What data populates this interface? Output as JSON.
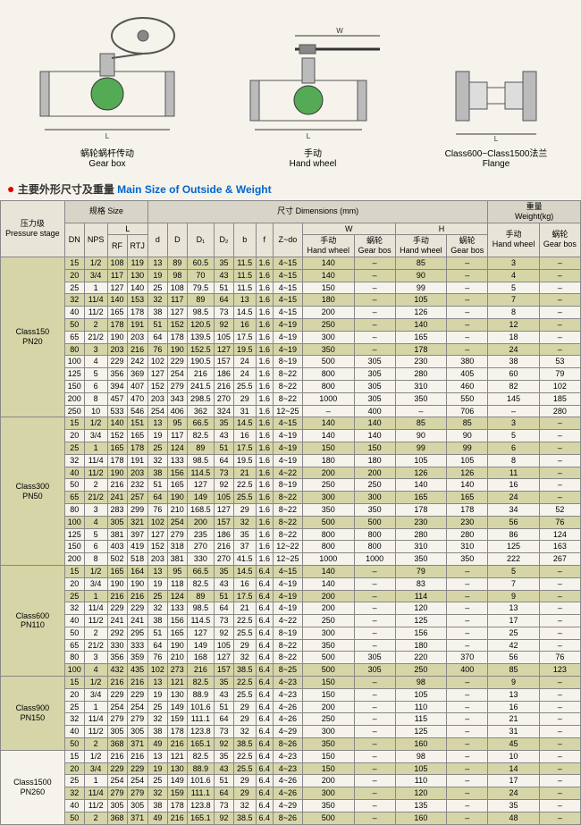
{
  "diagrams": [
    {
      "label_cn": "蜗轮蜗杆传动",
      "label_en": "Gear box"
    },
    {
      "label_cn": "手动",
      "label_en": "Hand wheel"
    },
    {
      "label_cn": "Class600~Class1500法兰",
      "label_en": "Flange"
    }
  ],
  "title": {
    "dot": "●",
    "cn": "主要外形尺寸及重量",
    "en": "Main Size of Outside & Weight"
  },
  "headers": {
    "pressure_cn": "压力级",
    "pressure_en": "Pressure stage",
    "size_cn": "规格 Size",
    "dims_cn": "尺寸 Dimensions (mm)",
    "weight_cn": "重量",
    "weight_en": "Weight(kg)",
    "DN": "DN",
    "NPS": "NPS",
    "L": "L",
    "RF": "RF",
    "RTJ": "RTJ",
    "d": "d",
    "D": "D",
    "D1": "D₁",
    "D2": "D₂",
    "b": "b",
    "f": "f",
    "Zdo": "Z~do",
    "W": "W",
    "H": "H",
    "hw_cn": "手动",
    "hw_en": "Hand wheel",
    "gb_cn": "蜗轮",
    "gb_en": "Gear bos"
  },
  "groups": [
    {
      "name": "Class150 PN20",
      "rows": [
        [
          "15",
          "1/2",
          "108",
          "119",
          "13",
          "89",
          "60.5",
          "35",
          "11.5",
          "1.6",
          "4~15",
          "140",
          "",
          "85",
          "",
          "3",
          "",
          1
        ],
        [
          "20",
          "3/4",
          "117",
          "130",
          "19",
          "98",
          "70",
          "43",
          "11.5",
          "1.6",
          "4~15",
          "140",
          "",
          "90",
          "",
          "4",
          "",
          1
        ],
        [
          "25",
          "1",
          "127",
          "140",
          "25",
          "108",
          "79.5",
          "51",
          "11.5",
          "1.6",
          "4~15",
          "150",
          "",
          "99",
          "",
          "5",
          "",
          0
        ],
        [
          "32",
          "11/4",
          "140",
          "153",
          "32",
          "117",
          "89",
          "64",
          "13",
          "1.6",
          "4~15",
          "180",
          "",
          "105",
          "",
          "7",
          "",
          1
        ],
        [
          "40",
          "11/2",
          "165",
          "178",
          "38",
          "127",
          "98.5",
          "73",
          "14.5",
          "1.6",
          "4~15",
          "200",
          "",
          "126",
          "",
          "8",
          "",
          0
        ],
        [
          "50",
          "2",
          "178",
          "191",
          "51",
          "152",
          "120.5",
          "92",
          "16",
          "1.6",
          "4~19",
          "250",
          "",
          "140",
          "",
          "12",
          "",
          1
        ],
        [
          "65",
          "21/2",
          "190",
          "203",
          "64",
          "178",
          "139.5",
          "105",
          "17.5",
          "1.6",
          "4~19",
          "300",
          "",
          "165",
          "",
          "18",
          "",
          0
        ],
        [
          "80",
          "3",
          "203",
          "216",
          "76",
          "190",
          "152.5",
          "127",
          "19.5",
          "1.6",
          "4~19",
          "350",
          "",
          "178",
          "",
          "24",
          "",
          1
        ],
        [
          "100",
          "4",
          "229",
          "242",
          "102",
          "229",
          "190.5",
          "157",
          "24",
          "1.6",
          "8~19",
          "500",
          "305",
          "230",
          "380",
          "38",
          "53",
          0
        ],
        [
          "125",
          "5",
          "356",
          "369",
          "127",
          "254",
          "216",
          "186",
          "24",
          "1.6",
          "8~22",
          "800",
          "305",
          "280",
          "405",
          "60",
          "79",
          0
        ],
        [
          "150",
          "6",
          "394",
          "407",
          "152",
          "279",
          "241.5",
          "216",
          "25.5",
          "1.6",
          "8~22",
          "800",
          "305",
          "310",
          "460",
          "82",
          "102",
          0
        ],
        [
          "200",
          "8",
          "457",
          "470",
          "203",
          "343",
          "298.5",
          "270",
          "29",
          "1.6",
          "8~22",
          "1000",
          "305",
          "350",
          "550",
          "145",
          "185",
          0
        ],
        [
          "250",
          "10",
          "533",
          "546",
          "254",
          "406",
          "362",
          "324",
          "31",
          "1.6",
          "12~25",
          "",
          "400",
          "",
          "706",
          "",
          "280",
          0
        ]
      ]
    },
    {
      "name": "Class300 PN50",
      "rows": [
        [
          "15",
          "1/2",
          "140",
          "151",
          "13",
          "95",
          "66.5",
          "35",
          "14.5",
          "1.6",
          "4~15",
          "140",
          "140",
          "85",
          "85",
          "3",
          "",
          1
        ],
        [
          "20",
          "3/4",
          "152",
          "165",
          "19",
          "117",
          "82.5",
          "43",
          "16",
          "1.6",
          "4~19",
          "140",
          "140",
          "90",
          "90",
          "5",
          "",
          0
        ],
        [
          "25",
          "1",
          "165",
          "178",
          "25",
          "124",
          "89",
          "51",
          "17.5",
          "1.6",
          "4~19",
          "150",
          "150",
          "99",
          "99",
          "6",
          "",
          1
        ],
        [
          "32",
          "11/4",
          "178",
          "191",
          "32",
          "133",
          "98.5",
          "64",
          "19.5",
          "1.6",
          "4~19",
          "180",
          "180",
          "105",
          "105",
          "8",
          "",
          0
        ],
        [
          "40",
          "11/2",
          "190",
          "203",
          "38",
          "156",
          "114.5",
          "73",
          "21",
          "1.6",
          "4~22",
          "200",
          "200",
          "126",
          "126",
          "11",
          "",
          1
        ],
        [
          "50",
          "2",
          "216",
          "232",
          "51",
          "165",
          "127",
          "92",
          "22.5",
          "1.6",
          "8~19",
          "250",
          "250",
          "140",
          "140",
          "16",
          "",
          0
        ],
        [
          "65",
          "21/2",
          "241",
          "257",
          "64",
          "190",
          "149",
          "105",
          "25.5",
          "1.6",
          "8~22",
          "300",
          "300",
          "165",
          "165",
          "24",
          "",
          1
        ],
        [
          "80",
          "3",
          "283",
          "299",
          "76",
          "210",
          "168.5",
          "127",
          "29",
          "1.6",
          "8~22",
          "350",
          "350",
          "178",
          "178",
          "34",
          "52",
          0
        ],
        [
          "100",
          "4",
          "305",
          "321",
          "102",
          "254",
          "200",
          "157",
          "32",
          "1.6",
          "8~22",
          "500",
          "500",
          "230",
          "230",
          "56",
          "76",
          1
        ],
        [
          "125",
          "5",
          "381",
          "397",
          "127",
          "279",
          "235",
          "186",
          "35",
          "1.6",
          "8~22",
          "800",
          "800",
          "280",
          "280",
          "86",
          "124",
          0
        ],
        [
          "150",
          "6",
          "403",
          "419",
          "152",
          "318",
          "270",
          "216",
          "37",
          "1.6",
          "12~22",
          "800",
          "800",
          "310",
          "310",
          "125",
          "163",
          0
        ],
        [
          "200",
          "8",
          "502",
          "518",
          "203",
          "381",
          "330",
          "270",
          "41.5",
          "1.6",
          "12~25",
          "1000",
          "1000",
          "350",
          "350",
          "222",
          "267",
          0
        ]
      ]
    },
    {
      "name": "Class600 PN110",
      "rows": [
        [
          "15",
          "1/2",
          "165",
          "164",
          "13",
          "95",
          "66.5",
          "35",
          "14.5",
          "6.4",
          "4~15",
          "140",
          "",
          "79",
          "",
          "5",
          "",
          1
        ],
        [
          "20",
          "3/4",
          "190",
          "190",
          "19",
          "118",
          "82.5",
          "43",
          "16",
          "6.4",
          "4~19",
          "140",
          "",
          "83",
          "",
          "7",
          "",
          0
        ],
        [
          "25",
          "1",
          "216",
          "216",
          "25",
          "124",
          "89",
          "51",
          "17.5",
          "6.4",
          "4~19",
          "200",
          "",
          "114",
          "",
          "9",
          "",
          1
        ],
        [
          "32",
          "11/4",
          "229",
          "229",
          "32",
          "133",
          "98.5",
          "64",
          "21",
          "6.4",
          "4~19",
          "200",
          "",
          "120",
          "",
          "13",
          "",
          0
        ],
        [
          "40",
          "11/2",
          "241",
          "241",
          "38",
          "156",
          "114.5",
          "73",
          "22.5",
          "6.4",
          "4~22",
          "250",
          "",
          "125",
          "",
          "17",
          "",
          0
        ],
        [
          "50",
          "2",
          "292",
          "295",
          "51",
          "165",
          "127",
          "92",
          "25.5",
          "6.4",
          "8~19",
          "300",
          "",
          "156",
          "",
          "25",
          "",
          0
        ],
        [
          "65",
          "21/2",
          "330",
          "333",
          "64",
          "190",
          "149",
          "105",
          "29",
          "6.4",
          "8~22",
          "350",
          "",
          "180",
          "",
          "42",
          "",
          0
        ],
        [
          "80",
          "3",
          "356",
          "359",
          "76",
          "210",
          "168",
          "127",
          "32",
          "6.4",
          "8~22",
          "500",
          "305",
          "220",
          "370",
          "56",
          "76",
          0
        ],
        [
          "100",
          "4",
          "432",
          "435",
          "102",
          "273",
          "216",
          "157",
          "38.5",
          "6.4",
          "8~25",
          "500",
          "305",
          "250",
          "400",
          "85",
          "123",
          1
        ]
      ]
    },
    {
      "name": "Class900 PN150",
      "rows": [
        [
          "15",
          "1/2",
          "216",
          "216",
          "13",
          "121",
          "82.5",
          "35",
          "22.5",
          "6.4",
          "4~23",
          "150",
          "",
          "98",
          "",
          "9",
          "",
          1
        ],
        [
          "20",
          "3/4",
          "229",
          "229",
          "19",
          "130",
          "88.9",
          "43",
          "25.5",
          "6.4",
          "4~23",
          "150",
          "",
          "105",
          "",
          "13",
          "",
          0
        ],
        [
          "25",
          "1",
          "254",
          "254",
          "25",
          "149",
          "101.6",
          "51",
          "29",
          "6.4",
          "4~26",
          "200",
          "",
          "110",
          "",
          "16",
          "",
          0
        ],
        [
          "32",
          "11/4",
          "279",
          "279",
          "32",
          "159",
          "111.1",
          "64",
          "29",
          "6.4",
          "4~26",
          "250",
          "",
          "115",
          "",
          "21",
          "",
          0
        ],
        [
          "40",
          "11/2",
          "305",
          "305",
          "38",
          "178",
          "123.8",
          "73",
          "32",
          "6.4",
          "4~29",
          "300",
          "",
          "125",
          "",
          "31",
          "",
          0
        ],
        [
          "50",
          "2",
          "368",
          "371",
          "49",
          "216",
          "165.1",
          "92",
          "38.5",
          "6.4",
          "8~26",
          "350",
          "",
          "160",
          "",
          "45",
          "",
          1
        ]
      ]
    },
    {
      "name": "Class1500 PN260",
      "rows": [
        [
          "15",
          "1/2",
          "216",
          "216",
          "13",
          "121",
          "82.5",
          "35",
          "22.5",
          "6.4",
          "4~23",
          "150",
          "",
          "98",
          "",
          "10",
          "",
          0
        ],
        [
          "20",
          "3/4",
          "229",
          "229",
          "19",
          "130",
          "88.9",
          "43",
          "25.5",
          "6.4",
          "4~23",
          "150",
          "",
          "105",
          "",
          "14",
          "",
          1
        ],
        [
          "25",
          "1",
          "254",
          "254",
          "25",
          "149",
          "101.6",
          "51",
          "29",
          "6.4",
          "4~26",
          "200",
          "",
          "110",
          "",
          "17",
          "",
          0
        ],
        [
          "32",
          "11/4",
          "279",
          "279",
          "32",
          "159",
          "111.1",
          "64",
          "29",
          "6.4",
          "4~26",
          "300",
          "",
          "120",
          "",
          "24",
          "",
          1
        ],
        [
          "40",
          "11/2",
          "305",
          "305",
          "38",
          "178",
          "123.8",
          "73",
          "32",
          "6.4",
          "4~29",
          "350",
          "",
          "135",
          "",
          "35",
          "",
          0
        ],
        [
          "50",
          "2",
          "368",
          "371",
          "49",
          "216",
          "165.1",
          "92",
          "38.5",
          "6.4",
          "8~26",
          "500",
          "",
          "160",
          "",
          "48",
          "",
          1
        ]
      ]
    }
  ]
}
